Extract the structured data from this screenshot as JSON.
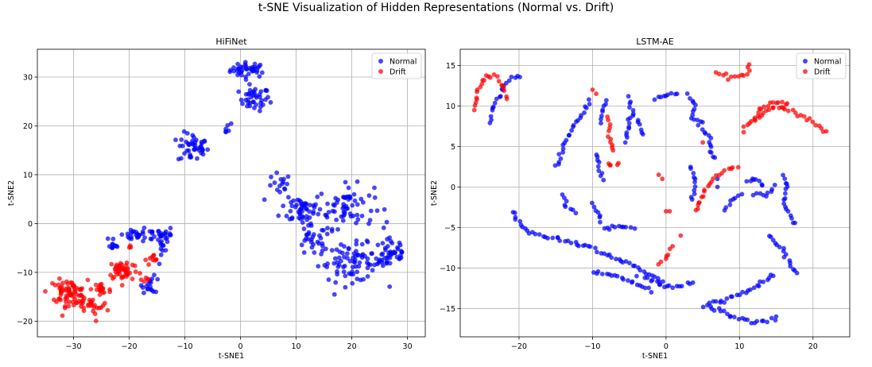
{
  "suptitle": "t-SNE Visualization of Hidden Representations (Normal vs. Drift)",
  "colors": {
    "normal": "#0000ff",
    "drift": "#ff0000",
    "grid": "#b0b0b0"
  },
  "chart_data": [
    {
      "type": "scatter",
      "title": "HiFiNet",
      "xlabel": "t-SNE1",
      "ylabel": "t-SNE2",
      "xlim": [
        -36.5,
        33.2
      ],
      "ylim": [
        -23.2,
        35.7
      ],
      "xticks": [
        -30,
        -20,
        -10,
        0,
        10,
        20,
        30
      ],
      "yticks": [
        -20,
        -10,
        0,
        10,
        20,
        30
      ],
      "grid": true,
      "legend_position": "top-right",
      "series": [
        {
          "name": "Normal",
          "clusters": [
            {
              "cx": 1.5,
              "cy": 31.5,
              "rx": 3.0,
              "ry": 1.4,
              "n": 40
            },
            {
              "cx": 2.5,
              "cy": 25.5,
              "rx": 2.5,
              "ry": 2.2,
              "n": 40
            },
            {
              "cx": -8.5,
              "cy": 15.5,
              "rx": 2.5,
              "ry": 2.8,
              "n": 45
            },
            {
              "cx": -3.0,
              "cy": 19.5,
              "rx": 1.6,
              "ry": 1.2,
              "n": 6
            },
            {
              "cx": 11.0,
              "cy": 3.0,
              "rx": 3.5,
              "ry": 3.0,
              "n": 50
            },
            {
              "cx": 19.0,
              "cy": 3.5,
              "rx": 4.5,
              "ry": 4.0,
              "n": 65
            },
            {
              "cx": 20.0,
              "cy": -8.0,
              "rx": 5.5,
              "ry": 3.5,
              "n": 80
            },
            {
              "cx": 27.0,
              "cy": -6.0,
              "rx": 3.0,
              "ry": 3.5,
              "n": 45
            },
            {
              "cx": 13.0,
              "cy": -3.5,
              "rx": 3.0,
              "ry": 3.0,
              "n": 30
            },
            {
              "cx": 7.0,
              "cy": 7.5,
              "rx": 2.0,
              "ry": 2.5,
              "n": 16
            },
            {
              "cx": -18.0,
              "cy": -2.5,
              "rx": 4.0,
              "ry": 1.2,
              "n": 35
            },
            {
              "cx": -13.5,
              "cy": -2.5,
              "rx": 1.5,
              "ry": 1.5,
              "n": 20
            },
            {
              "cx": -23.0,
              "cy": -4.5,
              "rx": 1.0,
              "ry": 0.6,
              "n": 8
            },
            {
              "cx": -16.0,
              "cy": -12.5,
              "rx": 1.5,
              "ry": 1.5,
              "n": 18
            },
            {
              "cx": -14.0,
              "cy": -6.0,
              "rx": 0.8,
              "ry": 2.0,
              "n": 8
            }
          ]
        },
        {
          "name": "Drift",
          "clusters": [
            {
              "cx": -31.0,
              "cy": -14.0,
              "rx": 3.2,
              "ry": 2.2,
              "n": 70
            },
            {
              "cx": -27.5,
              "cy": -17.0,
              "rx": 3.5,
              "ry": 1.5,
              "n": 30
            },
            {
              "cx": -25.0,
              "cy": -13.5,
              "rx": 1.6,
              "ry": 2.0,
              "n": 18
            },
            {
              "cx": -21.0,
              "cy": -9.5,
              "rx": 2.5,
              "ry": 2.0,
              "n": 45
            },
            {
              "cx": -15.5,
              "cy": -7.5,
              "rx": 1.5,
              "ry": 1.0,
              "n": 10
            },
            {
              "cx": -17.5,
              "cy": -11.5,
              "rx": 1.2,
              "ry": 1.2,
              "n": 6
            },
            {
              "cx": -26.0,
              "cy": -20.0,
              "rx": 0.5,
              "ry": 0.5,
              "n": 1
            },
            {
              "cx": -20.0,
              "cy": -5.0,
              "rx": 0.6,
              "ry": 0.5,
              "n": 3
            }
          ]
        }
      ]
    },
    {
      "type": "scatter",
      "title": "LSTM-AE",
      "xlabel": "t-SNE1",
      "ylabel": "t-SNE2",
      "xlim": [
        -28.0,
        25.0
      ],
      "ylim": [
        -18.5,
        17.0
      ],
      "xticks": [
        -20,
        -10,
        0,
        10,
        20
      ],
      "yticks": [
        -15,
        -10,
        -5,
        0,
        5,
        10,
        15
      ],
      "grid": true,
      "legend_position": "top-right",
      "series": [
        {
          "name": "Normal",
          "curves": [
            [
              [
                -21,
                -3
              ],
              [
                -19,
                -5.5
              ],
              [
                -15,
                -6.3
              ],
              [
                -10,
                -7.5
              ],
              [
                -5,
                -9.5
              ],
              [
                -2,
                -11
              ],
              [
                0,
                -12
              ]
            ],
            [
              [
                -22,
                12.5
              ],
              [
                -21,
                13.5
              ],
              [
                -19.5,
                13.7
              ]
            ],
            [
              [
                -24,
                8
              ],
              [
                -23.5,
                10
              ],
              [
                -22,
                12.5
              ]
            ],
            [
              [
                -10,
                -10.5
              ],
              [
                -7,
                -11
              ],
              [
                -4,
                -12
              ],
              [
                -2,
                -12.8
              ]
            ],
            [
              [
                -3,
                -11
              ],
              [
                -1,
                -12
              ],
              [
                1,
                -12.5
              ],
              [
                4,
                -11.5
              ]
            ],
            [
              [
                -8.5,
                -5.2
              ],
              [
                -6.5,
                -4.9
              ],
              [
                -4,
                -5
              ]
            ],
            [
              [
                -14,
                -1
              ],
              [
                -13.5,
                -2.5
              ],
              [
                -12,
                -3.5
              ]
            ],
            [
              [
                -15,
                2.5
              ],
              [
                -13,
                7
              ],
              [
                -11,
                9.5
              ],
              [
                -10,
                11
              ]
            ],
            [
              [
                -9,
                8
              ],
              [
                -8.5,
                10
              ],
              [
                -7.8,
                11
              ]
            ],
            [
              [
                -9.5,
                4
              ],
              [
                -9,
                2
              ],
              [
                -8.5,
                0.5
              ]
            ],
            [
              [
                -10,
                -2
              ],
              [
                -9,
                -3.5
              ],
              [
                -9,
                -4.5
              ]
            ],
            [
              [
                -5,
                11
              ],
              [
                -4.5,
                9
              ],
              [
                -3.5,
                7.5
              ],
              [
                -3,
                6
              ]
            ],
            [
              [
                -5.5,
                5.5
              ],
              [
                -5,
                7.5
              ],
              [
                -5.2,
                9
              ]
            ],
            [
              [
                -1.5,
                10.8
              ],
              [
                0,
                11.3
              ],
              [
                2,
                11.5
              ]
            ],
            [
              [
                3,
                11.5
              ],
              [
                4,
                10
              ],
              [
                3.5,
                8.5
              ],
              [
                5.5,
                8
              ]
            ],
            [
              [
                4.5,
                7.5
              ],
              [
                6,
                6
              ],
              [
                6.5,
                3
              ]
            ],
            [
              [
                5,
                -14.5
              ],
              [
                8,
                -14
              ],
              [
                12,
                -12.5
              ],
              [
                15,
                -10.5
              ]
            ],
            [
              [
                6,
                -14.7
              ],
              [
                9,
                -16
              ],
              [
                12,
                -16.7
              ],
              [
                15.5,
                -16.2
              ]
            ],
            [
              [
                14,
                -6
              ],
              [
                16,
                -8
              ],
              [
                17.5,
                -10.5
              ],
              [
                18,
                -11
              ]
            ],
            [
              [
                17.5,
                -4.5
              ],
              [
                16,
                -2
              ],
              [
                16.5,
                0.5
              ],
              [
                16,
                1.8
              ]
            ],
            [
              [
                12,
                -1
              ],
              [
                14,
                -1
              ],
              [
                15,
                0.5
              ]
            ],
            [
              [
                8,
                -3
              ],
              [
                9,
                -1.5
              ],
              [
                10.5,
                -0.5
              ]
            ],
            [
              [
                11,
                0.5
              ],
              [
                12,
                1.2
              ],
              [
                13.5,
                0
              ]
            ],
            [
              [
                3.5,
                2.5
              ],
              [
                4,
                0
              ],
              [
                3.5,
                -2
              ]
            ]
          ],
          "points": [
            [
              -2,
              -13
            ],
            [
              -4,
              -11
            ],
            [
              7,
              0
            ],
            [
              7,
              1
            ]
          ]
        },
        {
          "name": "Drift",
          "curves": [
            [
              [
                -26,
                9.5
              ],
              [
                -25.5,
                12
              ],
              [
                -24.5,
                13.7
              ],
              [
                -23,
                14
              ]
            ],
            [
              [
                -23,
                13.5
              ],
              [
                -22,
                12
              ],
              [
                -21.5,
                10.5
              ]
            ],
            [
              [
                -7.8,
                8.5
              ],
              [
                -7.5,
                6
              ],
              [
                -7,
                4
              ]
            ],
            [
              [
                -6.5,
                3
              ],
              [
                -7.5,
                2.5
              ],
              [
                -8,
                3
              ]
            ],
            [
              [
                10.5,
                7
              ],
              [
                12,
                8.5
              ],
              [
                14,
                9.5
              ],
              [
                16,
                10
              ],
              [
                18,
                9
              ],
              [
                20,
                8
              ],
              [
                22,
                6.5
              ]
            ],
            [
              [
                12,
                8
              ],
              [
                13,
                9.8
              ],
              [
                15,
                10.5
              ],
              [
                17,
                10.3
              ]
            ],
            [
              [
                7,
                14
              ],
              [
                9,
                13.5
              ],
              [
                11,
                14
              ],
              [
                11.5,
                15.5
              ]
            ],
            [
              [
                4,
                -3
              ],
              [
                5,
                -1
              ],
              [
                6.5,
                1
              ],
              [
                8,
                2
              ],
              [
                10,
                2.5
              ]
            ],
            [
              [
                -1,
                -9.5
              ],
              [
                0,
                -8.5
              ],
              [
                1,
                -7
              ]
            ]
          ],
          "points": [
            [
              -10,
              12
            ],
            [
              -1,
              1.5
            ],
            [
              -0.5,
              1
            ],
            [
              0,
              -3
            ],
            [
              0.5,
              -3
            ],
            [
              2,
              -6
            ],
            [
              5,
              5.5
            ],
            [
              -9.5,
              11.5
            ]
          ]
        }
      ]
    }
  ]
}
